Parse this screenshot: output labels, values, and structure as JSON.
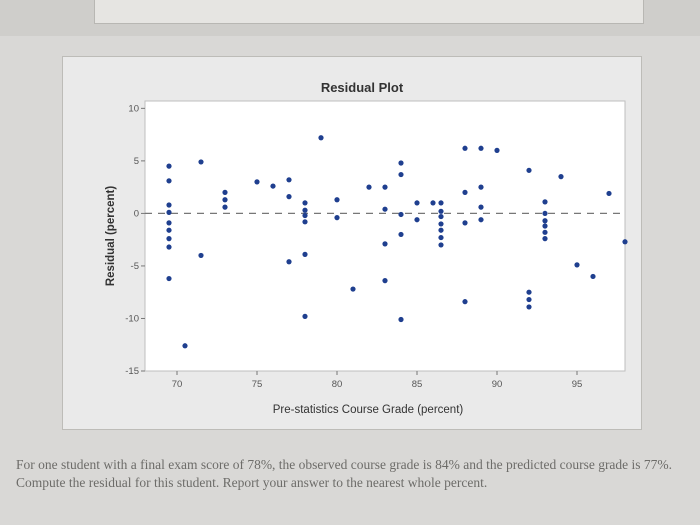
{
  "page": {
    "question_text": "For one student with a final exam score of 78%, the observed course grade is 84% and the predicted course grade is 77%. Compute the residual for this student. Report your answer to the nearest whole percent."
  },
  "chart_data": {
    "type": "scatter",
    "title": "Residual Plot",
    "xlabel": "Pre-statistics Course Grade (percent)",
    "ylabel": "Residual (percent)",
    "xlim": [
      68,
      98
    ],
    "ylim": [
      -15,
      10.7
    ],
    "xticks": [
      70,
      75,
      80,
      85,
      90,
      95
    ],
    "yticks": [
      10,
      5,
      0,
      -5,
      -10,
      -15
    ],
    "reference_line": 0,
    "grid": false,
    "points": [
      [
        69.5,
        4.5
      ],
      [
        69.5,
        3.1
      ],
      [
        69.5,
        0.8
      ],
      [
        69.5,
        0.1
      ],
      [
        69.5,
        -0.9
      ],
      [
        69.5,
        -1.6
      ],
      [
        69.5,
        -2.4
      ],
      [
        69.5,
        -3.2
      ],
      [
        69.5,
        -6.2
      ],
      [
        70.5,
        -12.6
      ],
      [
        71.5,
        4.9
      ],
      [
        71.5,
        -4.0
      ],
      [
        73,
        2.0
      ],
      [
        73,
        1.3
      ],
      [
        73,
        0.6
      ],
      [
        75,
        3.0
      ],
      [
        76,
        2.6
      ],
      [
        77,
        3.2
      ],
      [
        77,
        1.6
      ],
      [
        77,
        -4.6
      ],
      [
        78,
        1.0
      ],
      [
        78,
        0.3
      ],
      [
        78,
        -0.2
      ],
      [
        78,
        -0.8
      ],
      [
        78,
        -3.9
      ],
      [
        78,
        -9.8
      ],
      [
        79,
        7.2
      ],
      [
        80,
        1.3
      ],
      [
        80,
        -0.4
      ],
      [
        81,
        -7.2
      ],
      [
        82,
        2.5
      ],
      [
        83,
        -2.9
      ],
      [
        83,
        -6.4
      ],
      [
        83,
        0.4
      ],
      [
        83,
        2.5
      ],
      [
        84,
        4.8
      ],
      [
        84,
        3.7
      ],
      [
        84,
        -0.1
      ],
      [
        84,
        -2.0
      ],
      [
        84,
        -10.1
      ],
      [
        85,
        1.0
      ],
      [
        85,
        -0.6
      ],
      [
        86,
        1.0
      ],
      [
        86.5,
        1.0
      ],
      [
        86.5,
        0.2
      ],
      [
        86.5,
        -0.3
      ],
      [
        86.5,
        -1.0
      ],
      [
        86.5,
        -1.6
      ],
      [
        86.5,
        -2.3
      ],
      [
        86.5,
        -3.0
      ],
      [
        88,
        6.2
      ],
      [
        88,
        2.0
      ],
      [
        88,
        -0.9
      ],
      [
        88,
        -8.4
      ],
      [
        89,
        6.2
      ],
      [
        89,
        2.5
      ],
      [
        89,
        0.6
      ],
      [
        89,
        -0.6
      ],
      [
        90,
        6.0
      ],
      [
        92,
        4.1
      ],
      [
        92,
        -7.5
      ],
      [
        92,
        -8.2
      ],
      [
        92,
        -8.9
      ],
      [
        93,
        1.1
      ],
      [
        93,
        0.0
      ],
      [
        93,
        -0.7
      ],
      [
        93,
        -1.2
      ],
      [
        93,
        -1.8
      ],
      [
        93,
        -2.4
      ],
      [
        94,
        3.5
      ],
      [
        95,
        -4.9
      ],
      [
        96,
        -6.0
      ],
      [
        97,
        1.9
      ],
      [
        98,
        -2.7
      ]
    ]
  }
}
